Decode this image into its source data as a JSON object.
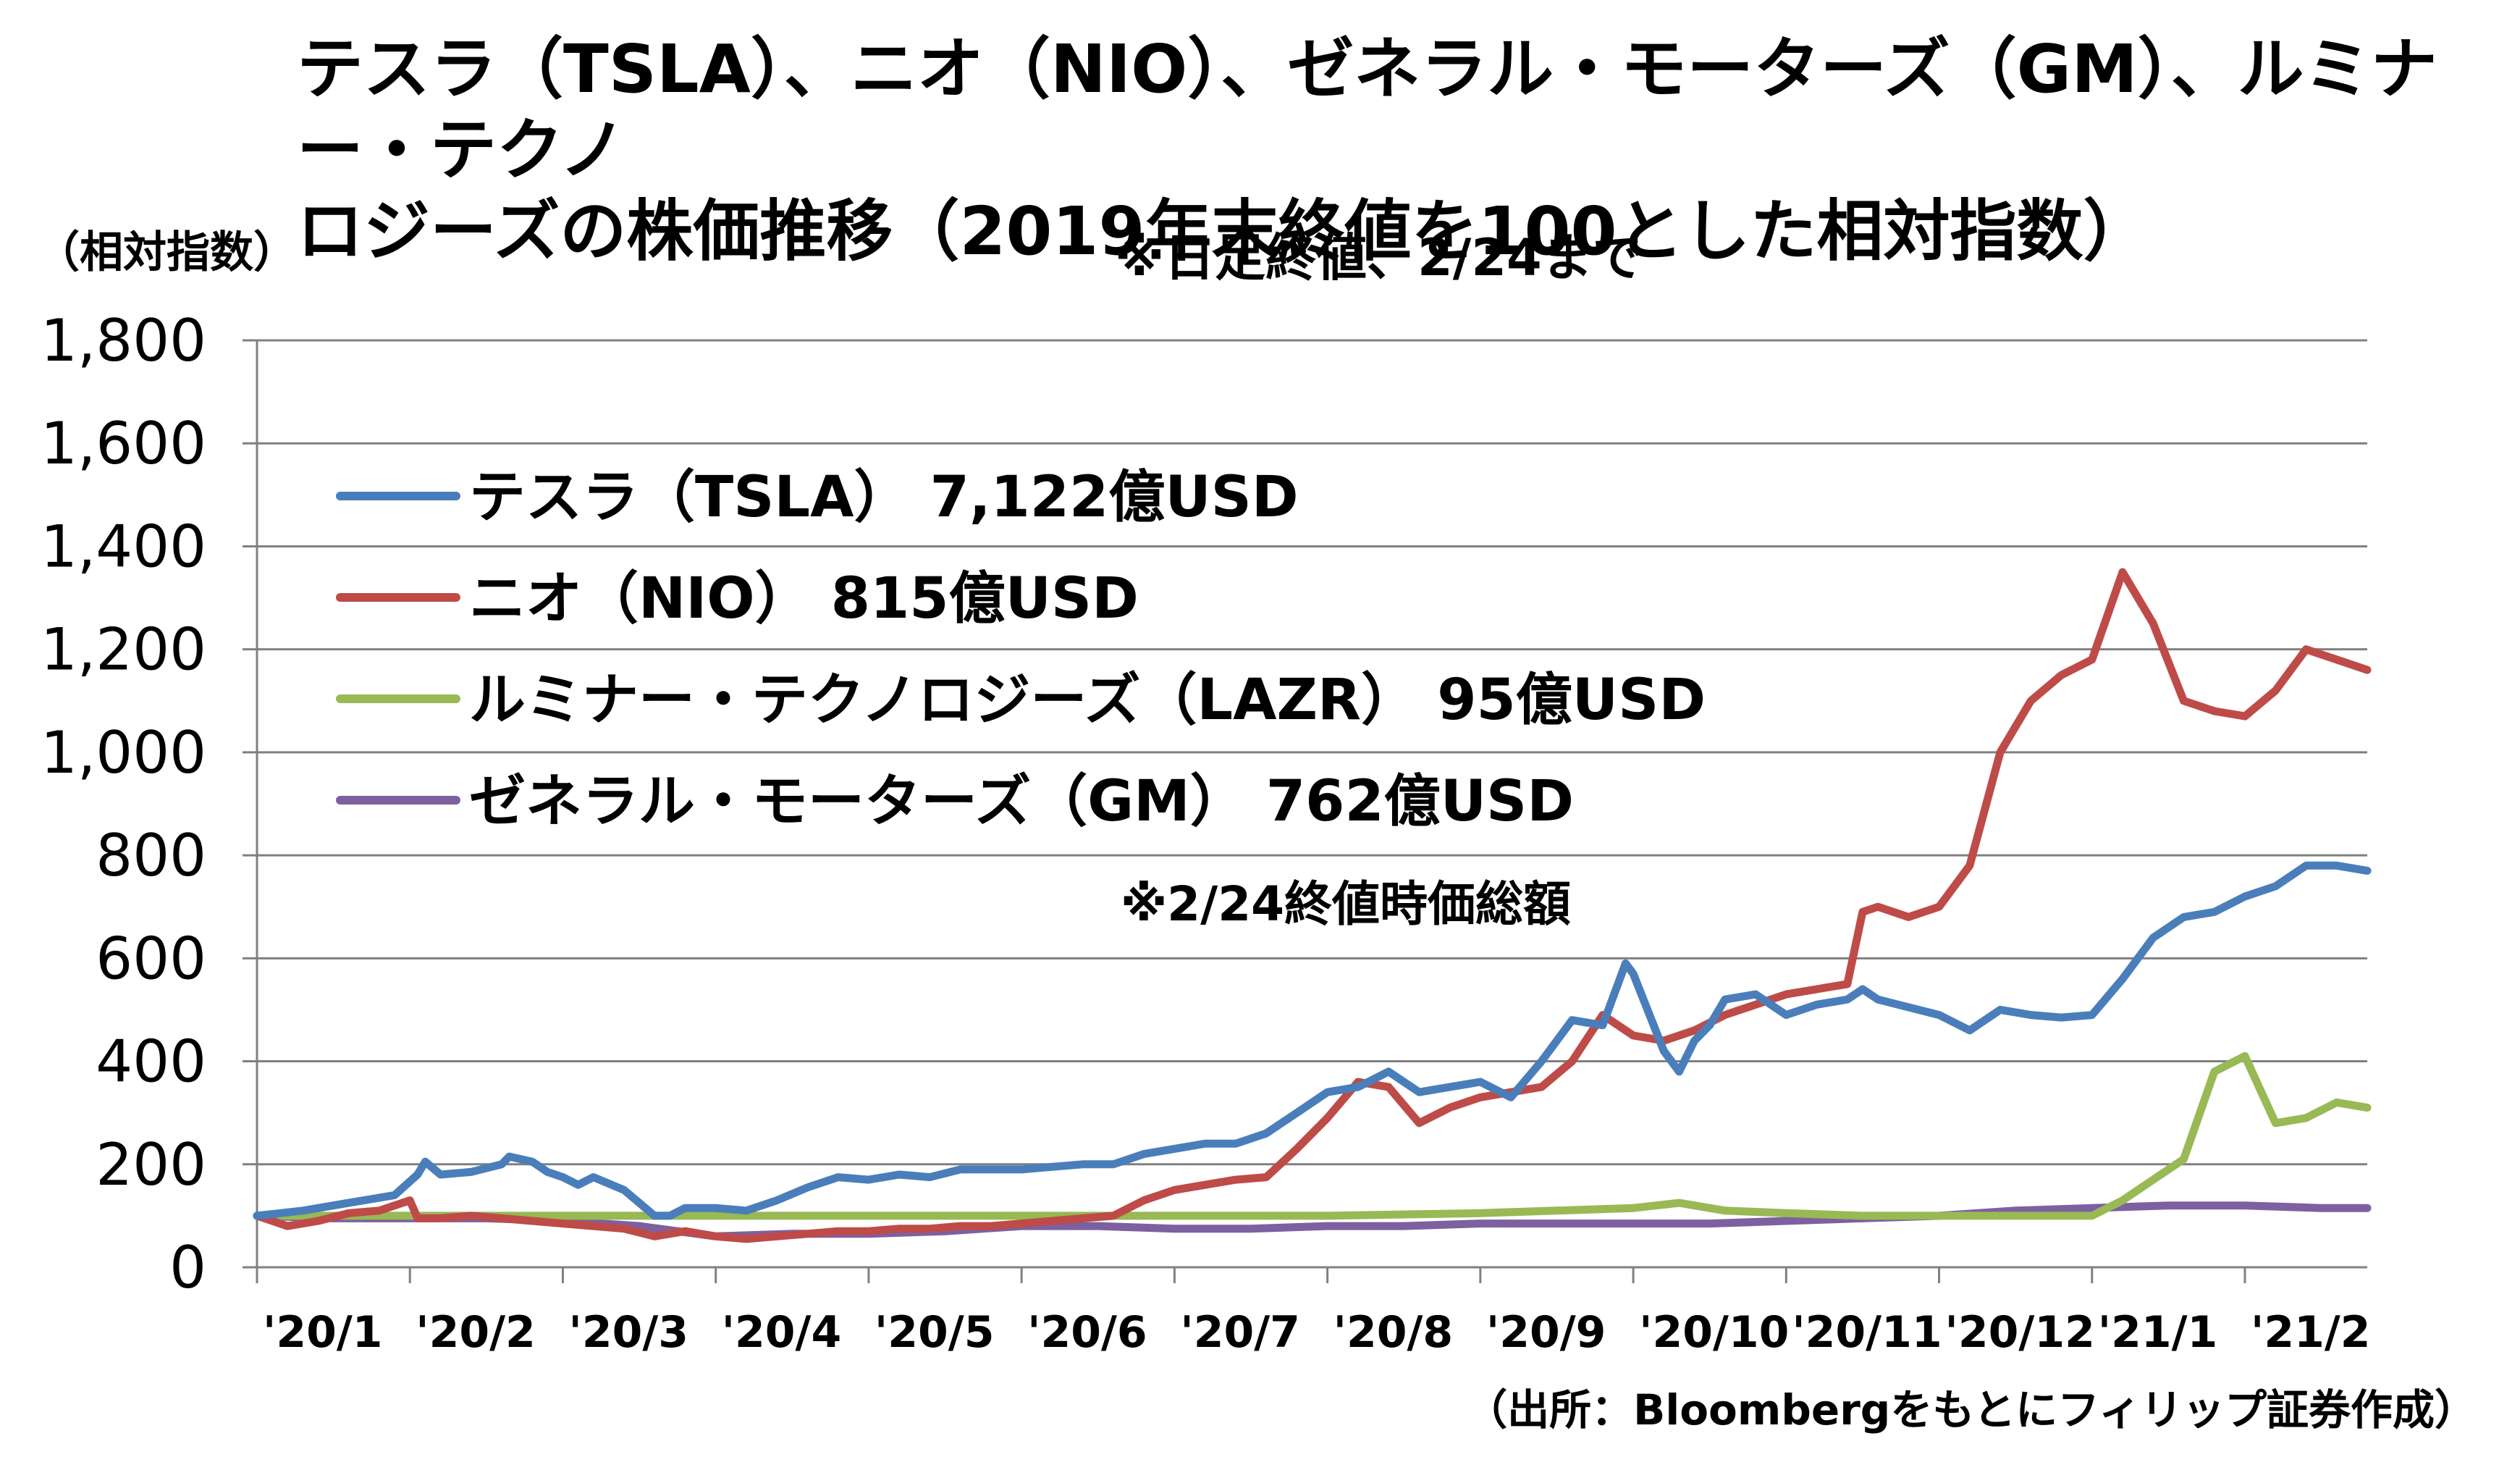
{
  "title": "テスラ（TSLA）、ニオ（NIO）、ゼネラル・モーターズ（GM）、ルミナー・テクノ\nロジーズの株価推移（2019年末終値を100とした相対指数）",
  "note": "※日足終値、2/24まで",
  "y_unit": "（相対指数）",
  "value_note": "※2/24終値時価総額",
  "source": "（出所：Bloombergをもとにフィリップ証券作成）",
  "colors": {
    "tsla": "#4a7ebb",
    "nio": "#be4b48",
    "lazr": "#98b954",
    "gm": "#7d60a0",
    "grid": "#808080",
    "axis": "#808080"
  },
  "chart_data": {
    "type": "line",
    "ylim": [
      0,
      1800
    ],
    "y_ticks": [
      "0",
      "200",
      "400",
      "600",
      "800",
      "1,000",
      "1,200",
      "1,400",
      "1,600",
      "1,800"
    ],
    "y_tick_values": [
      0,
      200,
      400,
      600,
      800,
      1000,
      1200,
      1400,
      1600,
      1800
    ],
    "x_tick_labels": [
      "'20/1",
      "'20/2",
      "'20/3",
      "'20/4",
      "'20/5",
      "'20/6",
      "'20/7",
      "'20/8",
      "'20/9",
      "'20/10",
      "'20/11",
      "'20/12",
      "'21/1",
      "'21/2"
    ],
    "x_range": [
      0,
      13.8
    ],
    "grid": true,
    "legend_position": "top-left",
    "series": [
      {
        "key": "tsla",
        "name": "テスラ（TSLA）  7,122億USD",
        "points": [
          [
            0,
            100
          ],
          [
            0.3,
            110
          ],
          [
            0.6,
            125
          ],
          [
            0.9,
            140
          ],
          [
            1.05,
            180
          ],
          [
            1.1,
            205
          ],
          [
            1.2,
            180
          ],
          [
            1.4,
            185
          ],
          [
            1.6,
            200
          ],
          [
            1.65,
            215
          ],
          [
            1.8,
            205
          ],
          [
            1.9,
            185
          ],
          [
            2.0,
            175
          ],
          [
            2.1,
            160
          ],
          [
            2.2,
            175
          ],
          [
            2.4,
            150
          ],
          [
            2.5,
            125
          ],
          [
            2.6,
            100
          ],
          [
            2.7,
            100
          ],
          [
            2.8,
            115
          ],
          [
            3.0,
            115
          ],
          [
            3.2,
            110
          ],
          [
            3.4,
            130
          ],
          [
            3.6,
            155
          ],
          [
            3.8,
            175
          ],
          [
            4.0,
            170
          ],
          [
            4.2,
            180
          ],
          [
            4.4,
            175
          ],
          [
            4.6,
            190
          ],
          [
            4.8,
            190
          ],
          [
            5.0,
            190
          ],
          [
            5.2,
            195
          ],
          [
            5.4,
            200
          ],
          [
            5.6,
            200
          ],
          [
            5.8,
            220
          ],
          [
            6.0,
            230
          ],
          [
            6.2,
            240
          ],
          [
            6.4,
            240
          ],
          [
            6.6,
            260
          ],
          [
            6.8,
            300
          ],
          [
            7.0,
            340
          ],
          [
            7.2,
            350
          ],
          [
            7.4,
            380
          ],
          [
            7.6,
            340
          ],
          [
            7.8,
            350
          ],
          [
            8.0,
            360
          ],
          [
            8.2,
            330
          ],
          [
            8.4,
            400
          ],
          [
            8.6,
            480
          ],
          [
            8.8,
            470
          ],
          [
            8.95,
            590
          ],
          [
            9.0,
            570
          ],
          [
            9.2,
            420
          ],
          [
            9.3,
            380
          ],
          [
            9.4,
            440
          ],
          [
            9.5,
            470
          ],
          [
            9.6,
            520
          ],
          [
            9.8,
            530
          ],
          [
            10.0,
            490
          ],
          [
            10.2,
            510
          ],
          [
            10.4,
            520
          ],
          [
            10.5,
            540
          ],
          [
            10.6,
            520
          ],
          [
            10.8,
            505
          ],
          [
            11.0,
            490
          ],
          [
            11.2,
            460
          ],
          [
            11.4,
            500
          ],
          [
            11.6,
            490
          ],
          [
            11.8,
            485
          ],
          [
            12.0,
            490
          ],
          [
            12.2,
            560
          ],
          [
            12.4,
            640
          ],
          [
            12.6,
            680
          ],
          [
            12.8,
            690
          ],
          [
            13.0,
            720
          ],
          [
            13.2,
            740
          ],
          [
            13.4,
            780
          ],
          [
            13.6,
            780
          ],
          [
            13.8,
            770
          ]
        ]
      },
      {
        "key": "nio",
        "name": "ニオ（NIO）  815億USD",
        "points": [
          [
            0,
            100
          ],
          [
            0.2,
            80
          ],
          [
            0.4,
            90
          ],
          [
            0.6,
            105
          ],
          [
            0.8,
            110
          ],
          [
            1.0,
            130
          ],
          [
            1.05,
            95
          ],
          [
            1.2,
            95
          ],
          [
            1.4,
            100
          ],
          [
            1.6,
            95
          ],
          [
            1.8,
            90
          ],
          [
            2.0,
            85
          ],
          [
            2.2,
            80
          ],
          [
            2.4,
            75
          ],
          [
            2.6,
            60
          ],
          [
            2.8,
            70
          ],
          [
            3.0,
            60
          ],
          [
            3.2,
            55
          ],
          [
            3.4,
            60
          ],
          [
            3.6,
            65
          ],
          [
            3.8,
            70
          ],
          [
            4.0,
            70
          ],
          [
            4.2,
            75
          ],
          [
            4.4,
            75
          ],
          [
            4.6,
            80
          ],
          [
            4.8,
            80
          ],
          [
            5.0,
            85
          ],
          [
            5.2,
            90
          ],
          [
            5.4,
            95
          ],
          [
            5.6,
            100
          ],
          [
            5.8,
            130
          ],
          [
            6.0,
            150
          ],
          [
            6.2,
            160
          ],
          [
            6.4,
            170
          ],
          [
            6.6,
            175
          ],
          [
            6.8,
            230
          ],
          [
            7.0,
            290
          ],
          [
            7.2,
            360
          ],
          [
            7.4,
            350
          ],
          [
            7.6,
            280
          ],
          [
            7.8,
            310
          ],
          [
            8.0,
            330
          ],
          [
            8.2,
            340
          ],
          [
            8.4,
            350
          ],
          [
            8.6,
            400
          ],
          [
            8.8,
            490
          ],
          [
            9.0,
            450
          ],
          [
            9.2,
            440
          ],
          [
            9.4,
            460
          ],
          [
            9.6,
            490
          ],
          [
            9.8,
            510
          ],
          [
            10.0,
            530
          ],
          [
            10.2,
            540
          ],
          [
            10.4,
            550
          ],
          [
            10.5,
            690
          ],
          [
            10.6,
            700
          ],
          [
            10.8,
            680
          ],
          [
            11.0,
            700
          ],
          [
            11.2,
            780
          ],
          [
            11.4,
            1000
          ],
          [
            11.6,
            1100
          ],
          [
            11.8,
            1150
          ],
          [
            12.0,
            1180
          ],
          [
            12.2,
            1350
          ],
          [
            12.4,
            1250
          ],
          [
            12.6,
            1100
          ],
          [
            12.8,
            1080
          ],
          [
            13.0,
            1070
          ],
          [
            13.2,
            1120
          ],
          [
            13.4,
            1200
          ],
          [
            13.6,
            1180
          ],
          [
            13.8,
            1160
          ]
        ]
      },
      {
        "key": "lazr",
        "name": "ルミナー・テクノロジーズ（LAZR）  95億USD",
        "points": [
          [
            0,
            100
          ],
          [
            0.5,
            100
          ],
          [
            1.0,
            100
          ],
          [
            2.0,
            100
          ],
          [
            3.0,
            100
          ],
          [
            4.0,
            100
          ],
          [
            5.0,
            100
          ],
          [
            6.0,
            100
          ],
          [
            7.0,
            100
          ],
          [
            8.0,
            105
          ],
          [
            8.5,
            110
          ],
          [
            9.0,
            115
          ],
          [
            9.3,
            125
          ],
          [
            9.6,
            110
          ],
          [
            10.0,
            105
          ],
          [
            10.5,
            100
          ],
          [
            11.0,
            100
          ],
          [
            11.5,
            100
          ],
          [
            12.0,
            100
          ],
          [
            12.2,
            130
          ],
          [
            12.4,
            170
          ],
          [
            12.6,
            210
          ],
          [
            12.8,
            380
          ],
          [
            13.0,
            410
          ],
          [
            13.2,
            280
          ],
          [
            13.4,
            290
          ],
          [
            13.6,
            320
          ],
          [
            13.8,
            310
          ]
        ]
      },
      {
        "key": "gm",
        "name": "ゼネラル・モーターズ（GM）  762億USD",
        "points": [
          [
            0,
            100
          ],
          [
            0.5,
            95
          ],
          [
            1.0,
            95
          ],
          [
            1.5,
            95
          ],
          [
            2.0,
            90
          ],
          [
            2.5,
            80
          ],
          [
            3.0,
            60
          ],
          [
            3.5,
            65
          ],
          [
            4.0,
            65
          ],
          [
            4.5,
            70
          ],
          [
            5.0,
            80
          ],
          [
            5.5,
            80
          ],
          [
            6.0,
            75
          ],
          [
            6.5,
            75
          ],
          [
            7.0,
            80
          ],
          [
            7.5,
            80
          ],
          [
            8.0,
            85
          ],
          [
            8.5,
            85
          ],
          [
            9.0,
            85
          ],
          [
            9.5,
            85
          ],
          [
            10.0,
            90
          ],
          [
            10.5,
            95
          ],
          [
            11.0,
            100
          ],
          [
            11.5,
            110
          ],
          [
            12.0,
            115
          ],
          [
            12.5,
            120
          ],
          [
            13.0,
            120
          ],
          [
            13.5,
            115
          ],
          [
            13.8,
            115
          ]
        ]
      }
    ]
  }
}
